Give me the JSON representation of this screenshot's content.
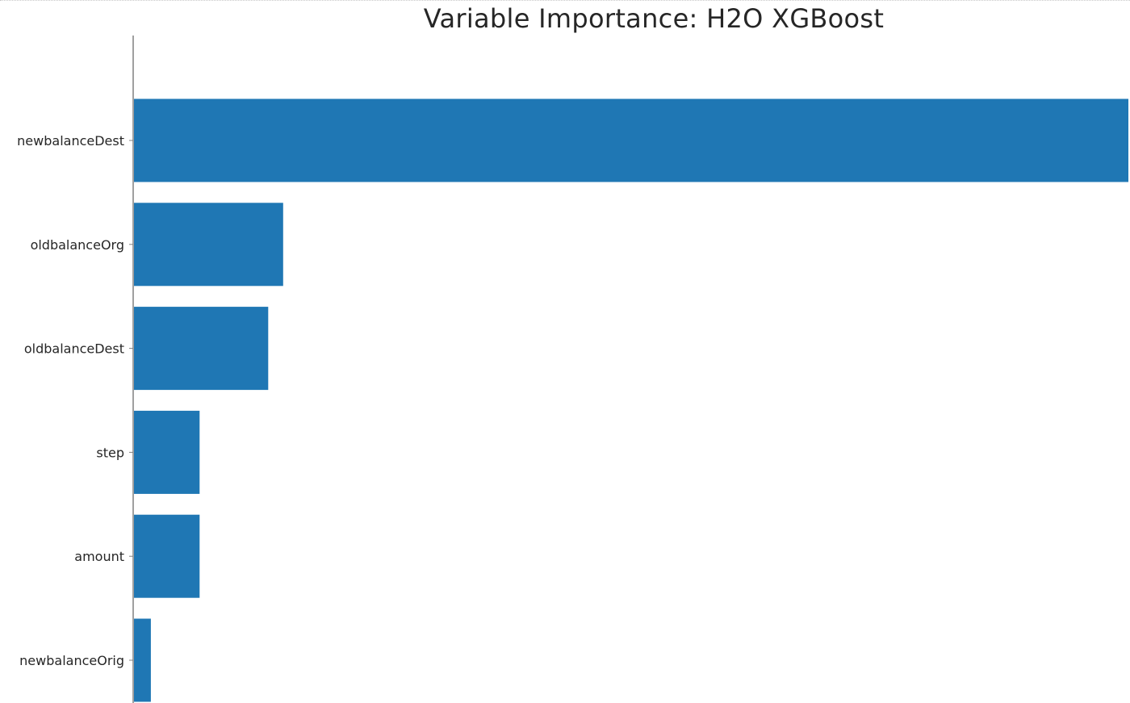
{
  "chart_data": {
    "type": "bar",
    "orientation": "horizontal",
    "title": "Variable Importance: H2O XGBoost",
    "xlabel": "",
    "ylabel": "",
    "categories": [
      "newbalanceDest",
      "oldbalanceOrg",
      "oldbalanceDest",
      "step",
      "amount",
      "newbalanceOrig"
    ],
    "values": [
      1.0,
      0.15,
      0.135,
      0.066,
      0.066,
      0.017
    ],
    "xlim": [
      0,
      1.0
    ],
    "grid": false,
    "legend": "none",
    "colors": {
      "bar": "#1f77b4",
      "axis": "#808080",
      "text": "#262626"
    }
  }
}
